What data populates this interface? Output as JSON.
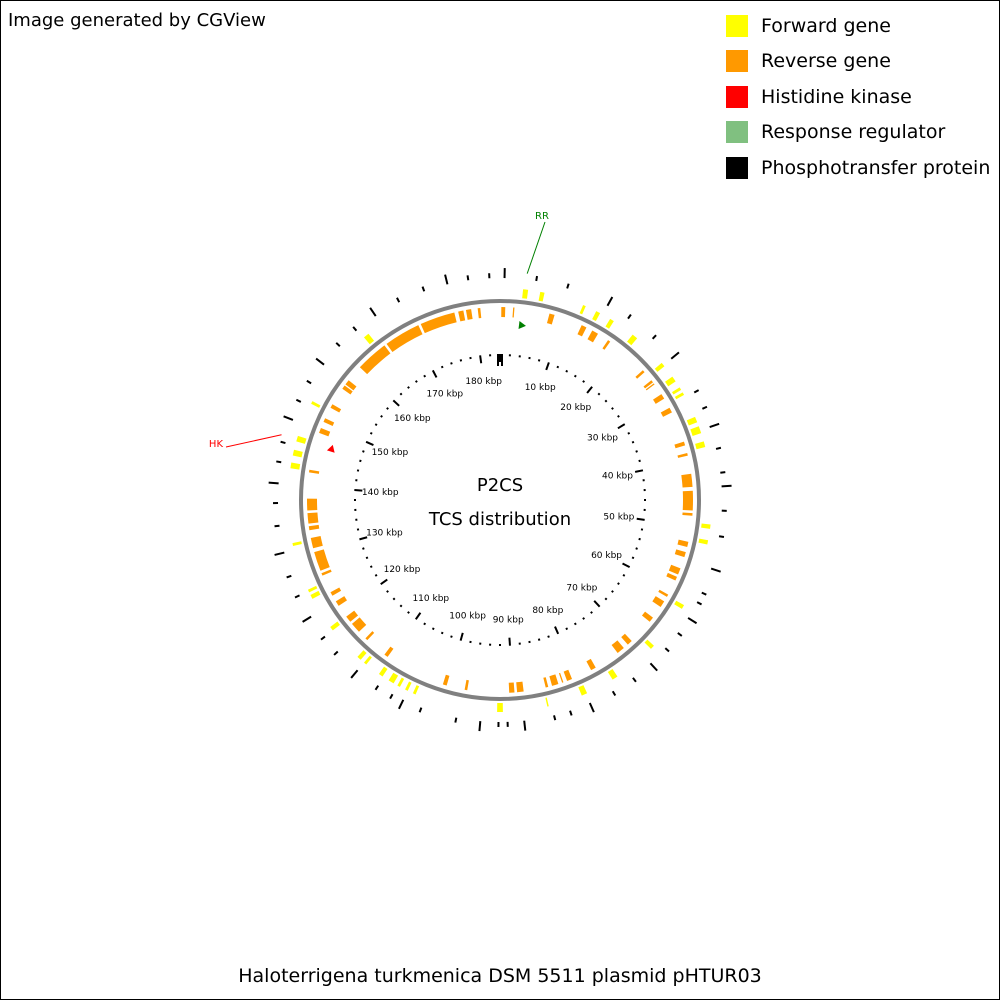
{
  "credit": "Image generated by CGView",
  "legend": [
    {
      "label": "Forward gene",
      "color": "#ffff00"
    },
    {
      "label": "Reverse gene",
      "color": "#ff9900"
    },
    {
      "label": "Histidine kinase",
      "color": "#ff0000"
    },
    {
      "label": "Response regulator",
      "color": "#80c080"
    },
    {
      "label": "Phosphotransfer protein",
      "color": "#000000"
    }
  ],
  "map": {
    "title": "P2CS",
    "subtitle": "TCS distribution",
    "caption": "Haloterrigena turkmenica DSM 5511 plasmid pHTUR03",
    "sequence_length_kbp": 184,
    "kbp_labels": [
      "10 kbp",
      "20 kbp",
      "30 kbp",
      "40 kbp",
      "50 kbp",
      "60 kbp",
      "70 kbp",
      "80 kbp",
      "90 kbp",
      "100 kbp",
      "110 kbp",
      "120 kbp",
      "130 kbp",
      "140 kbp",
      "150 kbp",
      "160 kbp",
      "170 kbp",
      "180 kbp"
    ],
    "backbone_color": "#808080",
    "markers": [
      {
        "label": "RR",
        "position_kbp": 3.5,
        "color": "#008000"
      },
      {
        "label": "HK",
        "position_kbp": 146.5,
        "color": "#ff0000"
      }
    ],
    "forward_genes_kbp": [
      [
        3.2,
        3.9
      ],
      [
        5.6,
        6.2
      ],
      [
        11.8,
        12.2
      ],
      [
        13.8,
        14.4
      ],
      [
        16.0,
        16.6
      ],
      [
        19.8,
        20.6
      ],
      [
        25.4,
        26.0
      ],
      [
        27.8,
        28.6
      ],
      [
        29.6,
        30.0
      ],
      [
        30.4,
        30.8
      ],
      [
        34.2,
        35.0
      ],
      [
        35.6,
        36.6
      ],
      [
        37.8,
        38.6
      ],
      [
        49.4,
        50.0
      ],
      [
        51.6,
        52.2
      ],
      [
        61.2,
        61.8
      ],
      [
        68.2,
        68.8
      ],
      [
        74.8,
        75.6
      ],
      [
        79.6,
        80.4
      ],
      [
        85.2,
        85.4
      ],
      [
        91.6,
        92.4
      ],
      [
        104.0,
        104.4
      ],
      [
        105.2,
        105.6
      ],
      [
        106.4,
        106.8
      ],
      [
        107.4,
        108.2
      ],
      [
        109.2,
        109.8
      ],
      [
        112.0,
        112.4
      ],
      [
        113.0,
        113.6
      ],
      [
        118.6,
        119.2
      ],
      [
        123.8,
        124.4
      ],
      [
        124.8,
        125.2
      ],
      [
        131.6,
        132.0
      ],
      [
        142.4,
        143.2
      ],
      [
        144.2,
        145.0
      ],
      [
        146.2,
        147.0
      ],
      [
        151.8,
        152.2
      ],
      [
        163.6,
        164.4
      ]
    ],
    "reverse_genes_kbp": [
      [
        0.2,
        0.8
      ],
      [
        2.0,
        2.2
      ],
      [
        7.6,
        8.4
      ],
      [
        12.8,
        13.6
      ],
      [
        14.6,
        15.6
      ],
      [
        17.4,
        17.8
      ],
      [
        24.4,
        24.8
      ],
      [
        26.4,
        26.8
      ],
      [
        27.0,
        27.2
      ],
      [
        29.0,
        29.8
      ],
      [
        31.4,
        32.2
      ],
      [
        37.0,
        37.6
      ],
      [
        38.8,
        39.2
      ],
      [
        42.0,
        44.0
      ],
      [
        44.6,
        47.6
      ],
      [
        48.0,
        48.4
      ],
      [
        52.4,
        53.2
      ],
      [
        54.0,
        54.8
      ],
      [
        56.6,
        57.6
      ],
      [
        58.0,
        58.6
      ],
      [
        61.0,
        61.4
      ],
      [
        62.2,
        63.2
      ],
      [
        65.2,
        66.0
      ],
      [
        70.0,
        70.8
      ],
      [
        71.6,
        72.8
      ],
      [
        76.8,
        77.6
      ],
      [
        80.8,
        81.6
      ],
      [
        82.2,
        82.4
      ],
      [
        83.0,
        84.0
      ],
      [
        84.6,
        85.0
      ],
      [
        88.4,
        89.4
      ],
      [
        89.8,
        90.6
      ],
      [
        97.0,
        97.4
      ],
      [
        100.2,
        100.8
      ],
      [
        110.2,
        110.8
      ],
      [
        114.2,
        114.6
      ],
      [
        116.0,
        117.6
      ],
      [
        118.0,
        119.0
      ],
      [
        121.0,
        121.8
      ],
      [
        122.8,
        123.4
      ],
      [
        126.2,
        126.6
      ],
      [
        127.0,
        130.0
      ],
      [
        130.6,
        132.2
      ],
      [
        133.4,
        134.0
      ],
      [
        134.4,
        136.0
      ],
      [
        136.4,
        138.2
      ],
      [
        142.2,
        142.6
      ],
      [
        148.4,
        149.2
      ],
      [
        150.2,
        150.8
      ],
      [
        152.6,
        153.2
      ],
      [
        156.0,
        156.6
      ],
      [
        156.8,
        157.6
      ],
      [
        160.2,
        165.2
      ],
      [
        165.6,
        171.2
      ],
      [
        171.6,
        177.0
      ],
      [
        177.6,
        178.4
      ],
      [
        178.8,
        179.6
      ],
      [
        180.6,
        181.0
      ]
    ],
    "outer_ticks_kbp": [
      0.6,
      4.8,
      9.0,
      14.8,
      18.0,
      22.2,
      25.8,
      31.2,
      33.6,
      36.2,
      39.2,
      42.4,
      44.2,
      47.4,
      50.8,
      55.2,
      58.6,
      60.0,
      62.4,
      64.8,
      67.4,
      70.2,
      73.2,
      76.4,
      79.8,
      82.6,
      84.8,
      88.8,
      91.0,
      92.2,
      94.6,
      97.8,
      102.6,
      105.2,
      106.8,
      109.0,
      112.4,
      116.0,
      118.6,
      121.8,
      125.0,
      127.8,
      131.0,
      134.6,
      137.6,
      140.2,
      143.0,
      145.6,
      148.8,
      151.4,
      154.2,
      157.2,
      160.4,
      163.4,
      166.6,
      170.2,
      173.8,
      177.0,
      179.8,
      182.6
    ]
  }
}
